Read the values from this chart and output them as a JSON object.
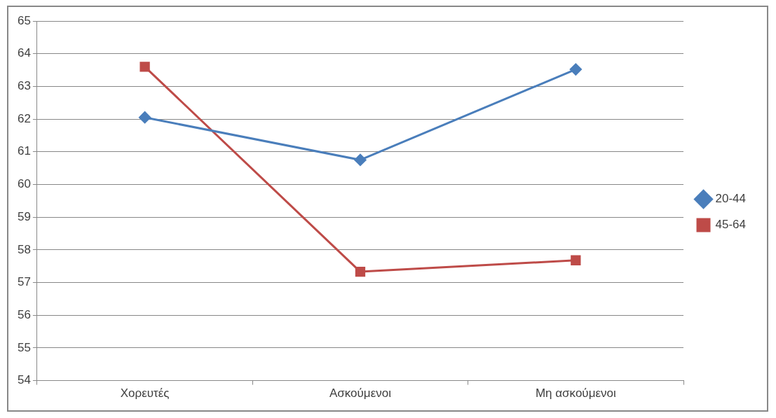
{
  "chart_data": {
    "type": "line",
    "categories": [
      "Χορευτές",
      "Ασκούμενοι",
      "Μη ασκούμενοι"
    ],
    "series": [
      {
        "name": "20-44",
        "color": "#4a7ebb",
        "marker": "diamond",
        "values": [
          62.05,
          60.75,
          63.52
        ]
      },
      {
        "name": "45-64",
        "color": "#be4b48",
        "marker": "square",
        "values": [
          63.6,
          57.33,
          57.68
        ]
      }
    ],
    "ylim": [
      54,
      65
    ],
    "yticks": [
      54,
      55,
      56,
      57,
      58,
      59,
      60,
      61,
      62,
      63,
      64,
      65
    ],
    "grid": "y",
    "legend": "right",
    "line_style": "solid"
  }
}
